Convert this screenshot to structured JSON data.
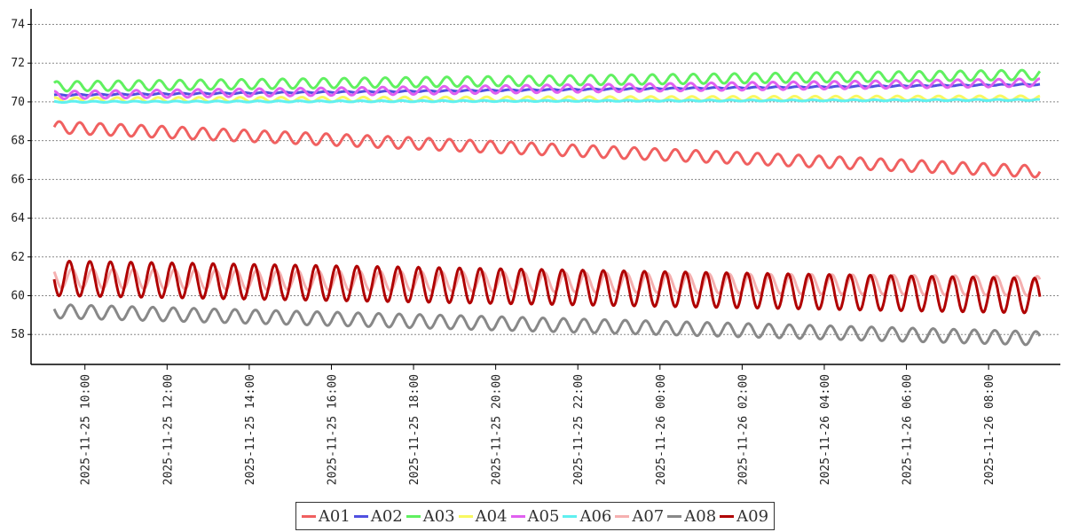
{
  "chart_data": {
    "type": "line",
    "title": "",
    "xlabel": "",
    "ylabel": "",
    "x_range": [
      "2025-11-25 09:15",
      "2025-11-26 09:15"
    ],
    "ylim": [
      56.5,
      74.8
    ],
    "y_ticks": [
      58,
      60,
      62,
      64,
      66,
      68,
      70,
      72,
      74
    ],
    "y_tick_labels": [
      "58",
      "60",
      "62",
      "64",
      "66",
      "68",
      "70",
      "72",
      "74"
    ],
    "x_ticks": [
      "2025-11-25 10:00",
      "2025-11-25 12:00",
      "2025-11-25 14:00",
      "2025-11-25 16:00",
      "2025-11-25 18:00",
      "2025-11-25 20:00",
      "2025-11-25 22:00",
      "2025-11-26 00:00",
      "2025-11-26 02:00",
      "2025-11-26 04:00",
      "2025-11-26 06:00",
      "2025-11-26 08:00"
    ],
    "x_tick_labels": [
      "2025-11-25 10:00",
      "2025-11-25 12:00",
      "2025-11-25 14:00",
      "2025-11-25 16:00",
      "2025-11-25 18:00",
      "2025-11-25 20:00",
      "2025-11-25 22:00",
      "2025-11-26 00:00",
      "2025-11-26 02:00",
      "2025-11-26 04:00",
      "2025-11-26 06:00",
      "2025-11-26 08:00"
    ],
    "grid": {
      "y": true,
      "x": false,
      "style": "dotted"
    },
    "legend_position": "bottom-center",
    "oscillation_period_minutes": 30,
    "series": [
      {
        "name": "A01",
        "color": "#f06060",
        "start": 68.7,
        "end": 66.4,
        "amplitude": 0.3
      },
      {
        "name": "A02",
        "color": "#5050e0",
        "start": 70.35,
        "end": 70.9,
        "amplitude": 0.03
      },
      {
        "name": "A03",
        "color": "#60f060",
        "start": 70.8,
        "end": 71.4,
        "amplitude": 0.25
      },
      {
        "name": "A04",
        "color": "#f8f860",
        "start": 70.1,
        "end": 70.2,
        "amplitude": 0.12
      },
      {
        "name": "A05",
        "color": "#e060f0",
        "start": 70.35,
        "end": 71.0,
        "amplitude": 0.2
      },
      {
        "name": "A06",
        "color": "#60f0f0",
        "start": 70.0,
        "end": 70.1,
        "amplitude": 0.03
      },
      {
        "name": "A07",
        "color": "#f5b0b0",
        "start": 60.9,
        "end": 60.5,
        "amplitude": 0.5
      },
      {
        "name": "A08",
        "color": "#888888",
        "start": 59.2,
        "end": 57.8,
        "amplitude": 0.35
      },
      {
        "name": "A09",
        "color": "#b00000",
        "start": 60.9,
        "end": 60.0,
        "amplitude": 0.9
      }
    ]
  }
}
